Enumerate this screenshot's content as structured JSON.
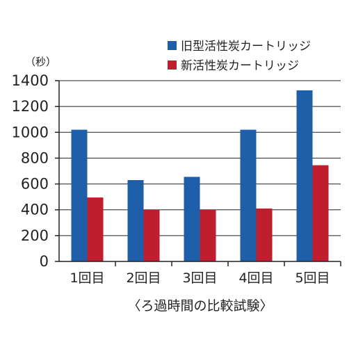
{
  "chart_data": {
    "type": "bar",
    "title": "",
    "xlabel": "〈ろ過時間の比較試験〉",
    "ylabel": "（秒）",
    "categories": [
      "1回目",
      "2回目",
      "3回目",
      "4回目",
      "5回目"
    ],
    "series": [
      {
        "name": "旧型活性炭カートリッジ",
        "color": "#1f5ea8",
        "values": [
          1020,
          630,
          655,
          1020,
          1325
        ]
      },
      {
        "name": "新活性炭カートリッジ",
        "color": "#bf1e2e",
        "values": [
          495,
          400,
          400,
          410,
          745
        ]
      }
    ],
    "ylim": [
      0,
      1400
    ],
    "yticks": [
      0,
      200,
      400,
      600,
      800,
      1000,
      1200,
      1400
    ],
    "grid": true,
    "legend": "top-right"
  }
}
